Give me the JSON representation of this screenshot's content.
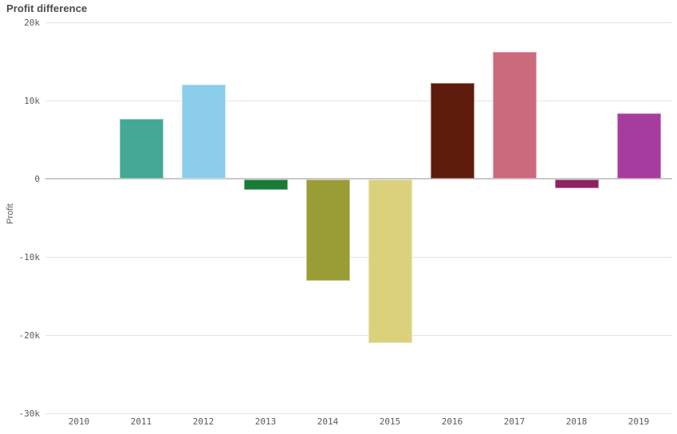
{
  "header": {
    "title": "Profit difference"
  },
  "chart_data": {
    "type": "bar",
    "title": "Profit difference",
    "xlabel": "",
    "ylabel": "Profit",
    "categories": [
      "2010",
      "2011",
      "2012",
      "2013",
      "2014",
      "2015",
      "2016",
      "2017",
      "2018",
      "2019"
    ],
    "values": [
      null,
      7700,
      12000,
      -1400,
      -13100,
      -21000,
      12200,
      16200,
      -1200,
      8400
    ],
    "colors": [
      null,
      "#45a795",
      "#8bcdea",
      "#187a36",
      "#9a9c35",
      "#dbd17c",
      "#5e1b0b",
      "#cb697d",
      "#8e2160",
      "#a63c9d"
    ],
    "ylim": [
      -30000,
      20000
    ],
    "yticks": [
      {
        "value": 20000,
        "label": "20k"
      },
      {
        "value": 10000,
        "label": "10k"
      },
      {
        "value": 0,
        "label": "0"
      },
      {
        "value": -10000,
        "label": "-10k"
      },
      {
        "value": -20000,
        "label": "-20k"
      },
      {
        "value": -30000,
        "label": "-30k"
      }
    ],
    "grid": "horizontal",
    "legend": "none"
  },
  "style": {
    "grid_color": "#e4e4e4",
    "zero_line_color": "#c9c9c9",
    "tick_label_color": "#595959",
    "title_color": "#4a4a4a"
  }
}
